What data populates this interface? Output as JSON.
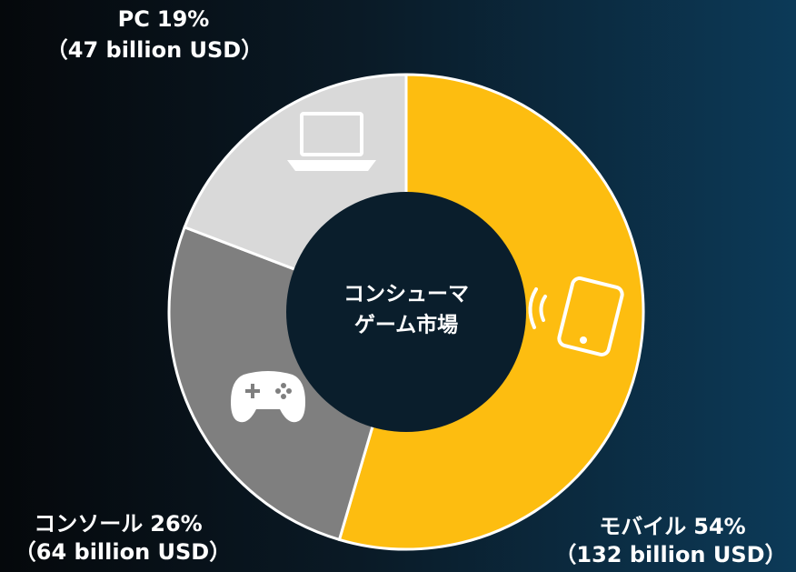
{
  "chart_data": {
    "type": "donut",
    "center_label": [
      "コンシューマ",
      "ゲーム市場"
    ],
    "categories": [
      "モバイル",
      "コンソール",
      "PC"
    ],
    "values": [
      54,
      26,
      19
    ],
    "value_labels": [
      "54%",
      "26%",
      "19%"
    ],
    "amounts": [
      132,
      64,
      47
    ],
    "amount_labels": [
      "（132 billion USD）",
      "（64 billion USD）",
      "（47 billion USD）"
    ],
    "colors": [
      "#fdbd10",
      "#7f7f7f",
      "#d9d9d9"
    ]
  }
}
